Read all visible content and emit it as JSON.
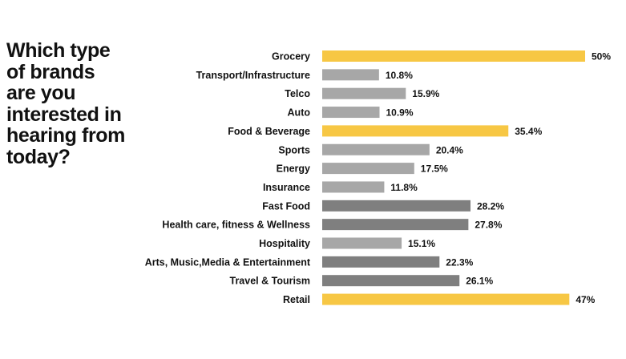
{
  "title": "Which type\nof brands\nare you\ninterested in\nhearing from\ntoday?",
  "colors": {
    "highlight": "#F7C744",
    "light_gray": "#A7A7A7",
    "dark_gray": "#7F7F7F"
  },
  "chart_data": {
    "type": "bar",
    "orientation": "horizontal",
    "categories": [
      "Grocery",
      "Transport/Infrastructure",
      "Telco",
      "Auto",
      "Food & Beverage",
      "Sports",
      "Energy",
      "Insurance",
      "Fast Food",
      "Health care, fitness & Wellness",
      "Hospitality",
      "Arts, Music,Media & Entertainment",
      "Travel & Tourism",
      "Retail"
    ],
    "values": [
      50,
      10.8,
      15.9,
      10.9,
      35.4,
      20.4,
      17.5,
      11.8,
      28.2,
      27.8,
      15.1,
      22.3,
      26.1,
      47
    ],
    "value_labels": [
      "50%",
      "10.8%",
      "15.9%",
      "10.9%",
      "35.4%",
      "20.4%",
      "17.5%",
      "11.8%",
      "28.2%",
      "27.8%",
      "15.1%",
      "22.3%",
      "26.1%",
      "47%"
    ],
    "bar_colors": [
      "highlight",
      "light_gray",
      "light_gray",
      "light_gray",
      "highlight",
      "light_gray",
      "light_gray",
      "light_gray",
      "dark_gray",
      "dark_gray",
      "light_gray",
      "dark_gray",
      "dark_gray",
      "highlight"
    ],
    "xlim": [
      0,
      50
    ],
    "grid": false,
    "legend": "none"
  }
}
